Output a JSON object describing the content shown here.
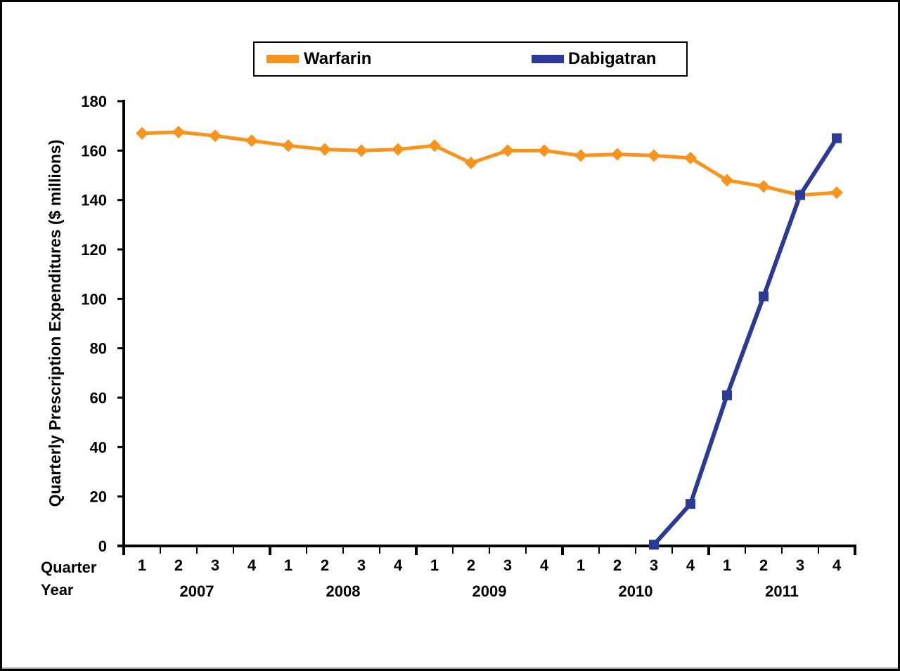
{
  "chart_data": {
    "type": "line",
    "title": "",
    "xlabel": "Quarter / Year",
    "ylabel": "Quarterly Prescription Expenditures ($ millions)",
    "ylim": [
      0,
      180
    ],
    "yticks": [
      0,
      20,
      40,
      60,
      80,
      100,
      120,
      140,
      160,
      180
    ],
    "grid": false,
    "legend_position": "top-center",
    "x_row_labels": {
      "quarter": "Quarter",
      "year": "Year"
    },
    "years": [
      "2007",
      "2008",
      "2009",
      "2010",
      "2011"
    ],
    "quarters": [
      "1",
      "2",
      "3",
      "4"
    ],
    "categories": [
      "2007 Q1",
      "2007 Q2",
      "2007 Q3",
      "2007 Q4",
      "2008 Q1",
      "2008 Q2",
      "2008 Q3",
      "2008 Q4",
      "2009 Q1",
      "2009 Q2",
      "2009 Q3",
      "2009 Q4",
      "2010 Q1",
      "2010 Q2",
      "2010 Q3",
      "2010 Q4",
      "2011 Q1",
      "2011 Q2",
      "2011 Q3",
      "2011 Q4"
    ],
    "series": [
      {
        "name": "Warfarin",
        "color": "#F7941D",
        "marker": "diamond",
        "values": [
          167,
          167.5,
          166,
          164,
          162,
          160.5,
          160,
          160.5,
          162,
          155,
          160,
          160,
          158,
          158.5,
          158,
          157,
          148,
          145.5,
          142,
          143
        ]
      },
      {
        "name": "Dabigatran",
        "color": "#2B3A97",
        "marker": "square",
        "values": [
          null,
          null,
          null,
          null,
          null,
          null,
          null,
          null,
          null,
          null,
          null,
          null,
          null,
          null,
          0.5,
          17,
          61,
          101,
          142,
          165
        ]
      }
    ]
  }
}
